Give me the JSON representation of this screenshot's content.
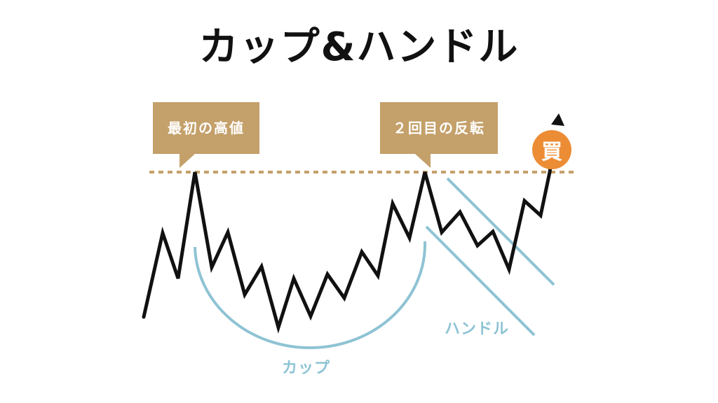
{
  "title": "カップ&ハンドル",
  "callouts": {
    "first_high": "最初の高値",
    "second_reversal": "２回目の反転"
  },
  "buy_badge": "買",
  "labels": {
    "cup": "カップ",
    "handle": "ハンドル"
  },
  "colors": {
    "price_line": "#111111",
    "resistance_line": "#c4a06a",
    "callout_bg": "#c4a06a",
    "cup_handle_lines": "#8ec3d4",
    "buy_badge": "#ec8d36"
  }
}
